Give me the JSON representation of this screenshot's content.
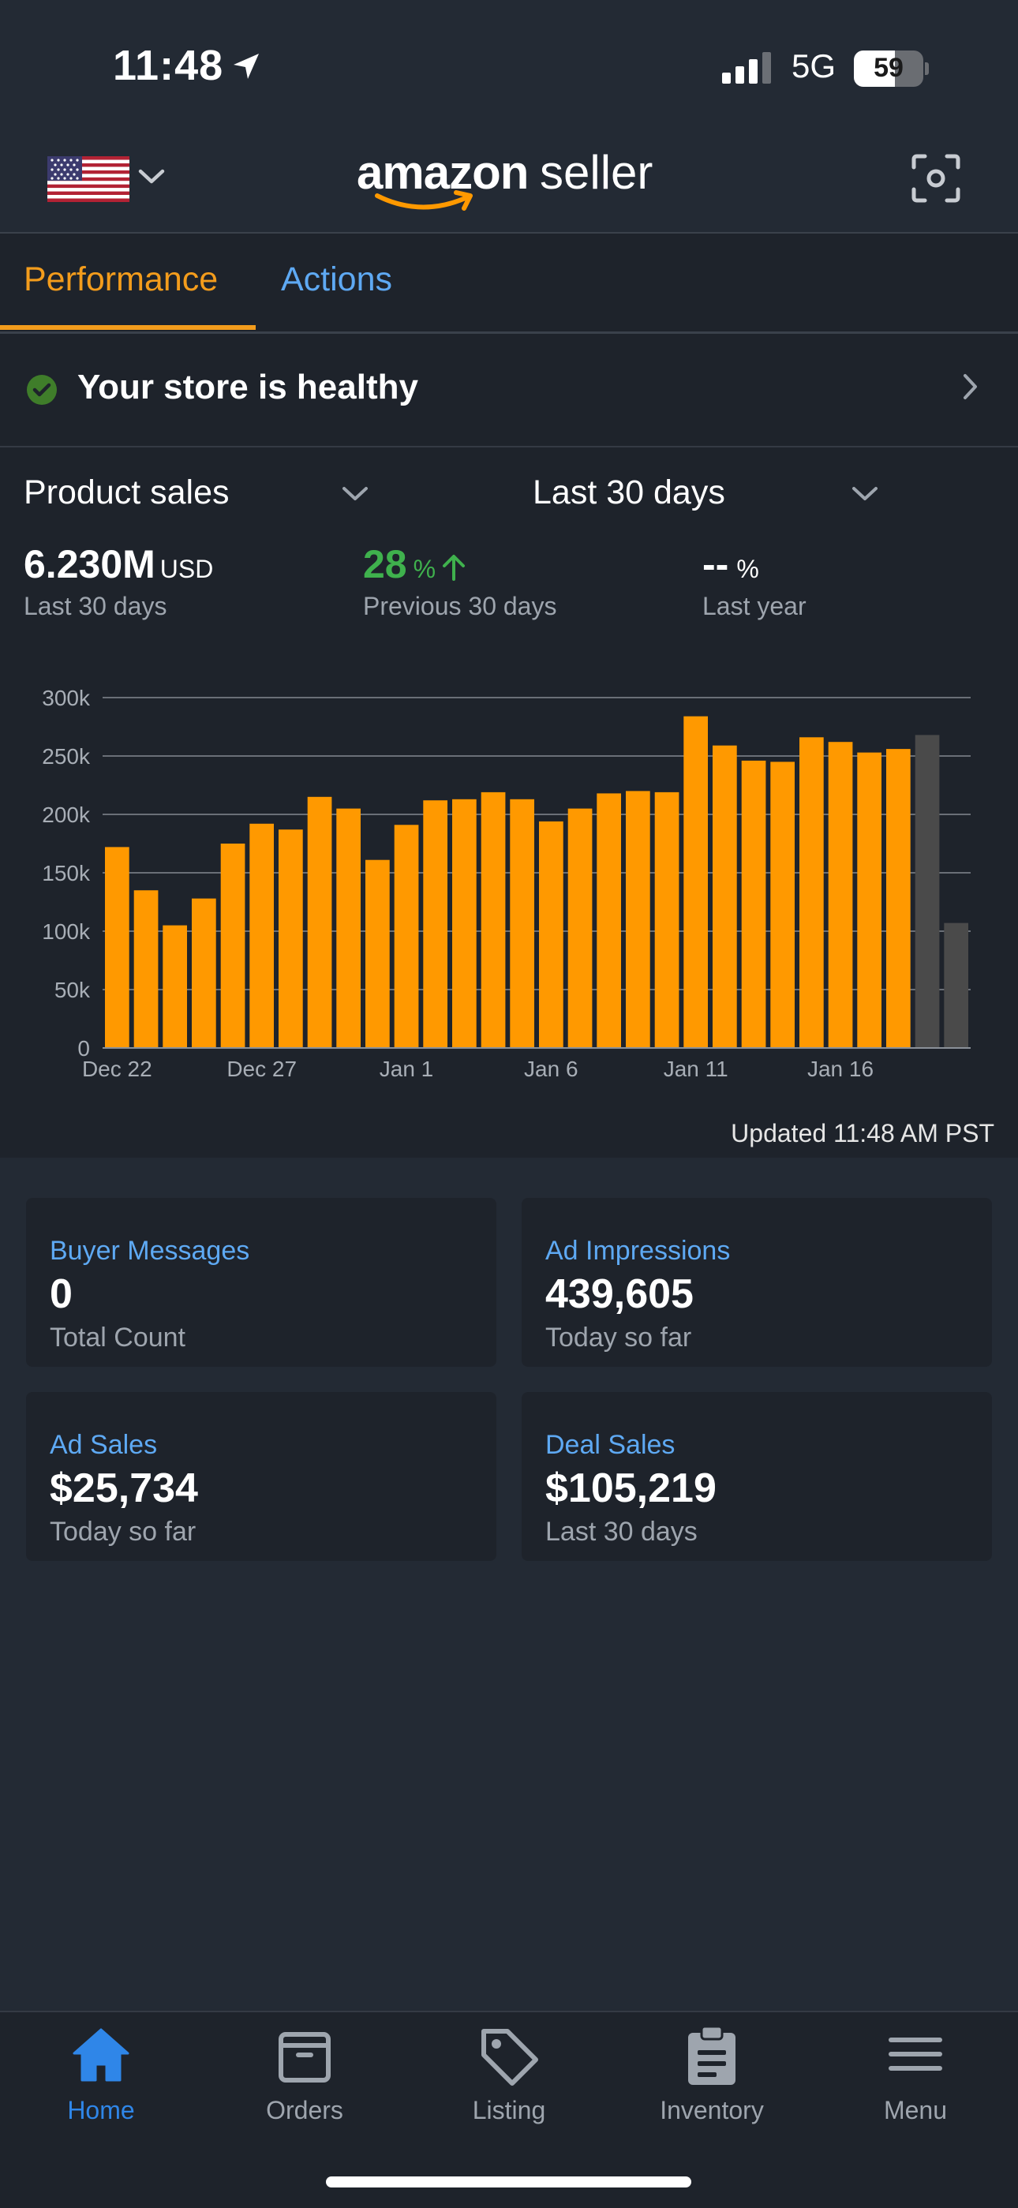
{
  "status_bar": {
    "time": "11:48",
    "network": "5G",
    "battery": "59"
  },
  "header": {
    "brand": "amazon",
    "brand_suffix": "seller",
    "flag": "us-flag-icon"
  },
  "tabs": [
    {
      "label": "Performance",
      "active": true
    },
    {
      "label": "Actions",
      "active": false
    }
  ],
  "health": {
    "text": "Your store is healthy",
    "status_color": "#3fb14d"
  },
  "sales": {
    "metric": "Product sales",
    "period": "Last 30 days",
    "total_value": "6.230M",
    "total_unit": "USD",
    "total_caption": "Last 30 days",
    "growth_value": "28",
    "growth_unit": "%",
    "growth_caption": "Previous 30 days",
    "last_year_value": "--",
    "last_year_unit": "%",
    "last_year_caption": "Last year",
    "updated": "Updated 11:48 AM PST"
  },
  "chart_data": {
    "type": "bar",
    "ylim": [
      0,
      300000
    ],
    "yticks": [
      0,
      50000,
      100000,
      150000,
      200000,
      250000,
      300000
    ],
    "ytick_labels": [
      "0",
      "50k",
      "100k",
      "150k",
      "200k",
      "250k",
      "300k"
    ],
    "xtick_labels": [
      {
        "label": "Dec 22",
        "index": 0
      },
      {
        "label": "Dec 27",
        "index": 5
      },
      {
        "label": "Jan 1",
        "index": 10
      },
      {
        "label": "Jan 6",
        "index": 15
      },
      {
        "label": "Jan 11",
        "index": 20
      },
      {
        "label": "Jan 16",
        "index": 25
      }
    ],
    "grid": true,
    "values": [
      172000,
      135000,
      105000,
      128000,
      175000,
      192000,
      187000,
      215000,
      205000,
      161000,
      191000,
      212000,
      213000,
      219000,
      213000,
      194000,
      205000,
      218000,
      220000,
      219000,
      284000,
      259000,
      246000,
      245000,
      266000,
      262000,
      253000,
      256000,
      268000,
      107000
    ],
    "bar_colors": [
      "#ff9900",
      "#ff9900",
      "#ff9900",
      "#ff9900",
      "#ff9900",
      "#ff9900",
      "#ff9900",
      "#ff9900",
      "#ff9900",
      "#ff9900",
      "#ff9900",
      "#ff9900",
      "#ff9900",
      "#ff9900",
      "#ff9900",
      "#ff9900",
      "#ff9900",
      "#ff9900",
      "#ff9900",
      "#ff9900",
      "#ff9900",
      "#ff9900",
      "#ff9900",
      "#ff9900",
      "#ff9900",
      "#ff9900",
      "#ff9900",
      "#ff9900",
      "#4a4a4a",
      "#4a4a4a"
    ]
  },
  "cards": {
    "buyer_messages": {
      "title": "Buyer Messages",
      "value": "0",
      "caption": "Total Count"
    },
    "ad_impressions": {
      "title": "Ad Impressions",
      "value": "439,605",
      "caption": "Today so far"
    },
    "ad_sales": {
      "title": "Ad Sales",
      "value": "$25,734",
      "caption": "Today so far"
    },
    "deal_sales": {
      "title": "Deal Sales",
      "value": "$105,219",
      "caption": "Last 30 days"
    }
  },
  "nav": {
    "home": "Home",
    "orders": "Orders",
    "listing": "Listing",
    "inventory": "Inventory",
    "menu": "Menu"
  },
  "colors": {
    "accent": "#f39c1c",
    "link": "#5ea9f3",
    "active_nav": "#2f86e8",
    "bar": "#ff9900",
    "bar_partial": "#4a4a4a"
  }
}
